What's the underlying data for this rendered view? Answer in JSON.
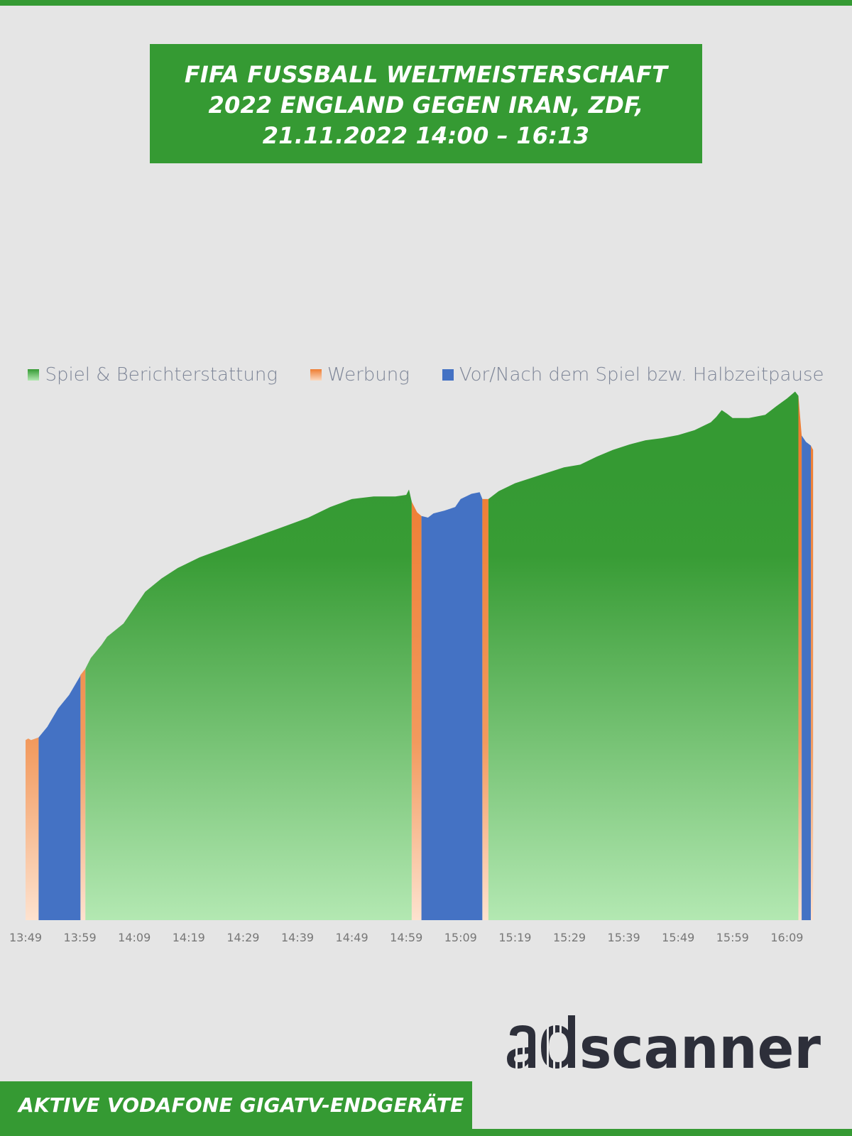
{
  "title": {
    "lines": [
      "FIFA FUSSBALL WELTMEISTERSCHAFT",
      "2022 ENGLAND GEGEN IRAN, ZDF,",
      "21.11.2022 14:00 – 16:13"
    ]
  },
  "footer": {
    "text": "AKTIVE VODAFONE GIGATV-ENDGERÄTE"
  },
  "logo": {
    "text": "adscanner"
  },
  "colors": {
    "accent": "#359a33",
    "game": "#359a33",
    "game_light": "#b3e8b2",
    "ad": "#ee7d32",
    "ad_light": "#fbd9c0",
    "prepost": "#4472c4",
    "background": "#e5e5e5",
    "logo": "#2d2f3a"
  },
  "chart_data": {
    "type": "area",
    "title": "",
    "xlabel": "",
    "ylabel": "",
    "ylim": [
      0,
      100
    ],
    "grid": false,
    "legend_position": "top",
    "legend": [
      {
        "label": "Spiel & Berichterstattung",
        "color": "#359a33"
      },
      {
        "label": "Werbung",
        "color": "#ee7d32"
      },
      {
        "label": "Vor/Nach dem Spiel bzw. Halbzeitpause",
        "color": "#4472c4"
      }
    ],
    "x_ticks": [
      "13:49",
      "13:59",
      "14:09",
      "14:19",
      "14:29",
      "14:39",
      "14:49",
      "14:59",
      "15:09",
      "15:19",
      "15:29",
      "15:39",
      "15:49",
      "15:59",
      "16:09"
    ],
    "x_range_minutes": [
      0,
      147
    ],
    "x_unit": "minutes after 13:49",
    "series": [
      {
        "name": "Werbung",
        "category": "ad",
        "points": [
          [
            0,
            34
          ],
          [
            0.5,
            34.3
          ],
          [
            1,
            34.0
          ],
          [
            2.4,
            34.5
          ]
        ]
      },
      {
        "name": "Vor/Nach dem Spiel bzw. Halbzeitpause",
        "category": "prepost",
        "points": [
          [
            2.4,
            34.5
          ],
          [
            4,
            36.5
          ],
          [
            6,
            40
          ],
          [
            8,
            42.5
          ],
          [
            10,
            46
          ],
          [
            10.1,
            46.3
          ]
        ]
      },
      {
        "name": "Werbung",
        "category": "ad",
        "points": [
          [
            10.1,
            46.3
          ],
          [
            11,
            47.5
          ]
        ]
      },
      {
        "name": "Spiel & Berichterstattung",
        "category": "game",
        "points": [
          [
            11,
            47.5
          ],
          [
            12,
            49.5
          ],
          [
            14,
            52
          ],
          [
            15,
            53.5
          ],
          [
            18,
            56
          ],
          [
            20,
            59
          ],
          [
            22,
            62
          ],
          [
            25,
            64.5
          ],
          [
            28,
            66.5
          ],
          [
            32,
            68.5
          ],
          [
            36,
            70
          ],
          [
            40,
            71.5
          ],
          [
            44,
            73
          ],
          [
            48,
            74.5
          ],
          [
            52,
            76
          ],
          [
            56,
            78
          ],
          [
            60,
            79.5
          ],
          [
            64,
            80
          ],
          [
            66,
            80
          ],
          [
            68,
            80
          ],
          [
            70,
            80.3
          ],
          [
            70.5,
            81.3
          ],
          [
            71,
            79
          ]
        ]
      },
      {
        "name": "Werbung",
        "category": "ad",
        "points": [
          [
            71,
            79
          ],
          [
            72,
            77
          ],
          [
            72.8,
            76.3
          ]
        ]
      },
      {
        "name": "Vor/Nach dem Spiel bzw. Halbzeitpause",
        "category": "prepost",
        "points": [
          [
            72.8,
            76.3
          ],
          [
            74,
            76
          ],
          [
            75,
            76.8
          ],
          [
            77,
            77.3
          ],
          [
            79,
            78
          ],
          [
            80,
            79.5
          ],
          [
            82,
            80.5
          ],
          [
            83.5,
            80.8
          ],
          [
            84,
            79.5
          ]
        ]
      },
      {
        "name": "Werbung",
        "category": "ad",
        "points": [
          [
            84,
            79.5
          ],
          [
            85.1,
            79.5
          ]
        ]
      },
      {
        "name": "Spiel & Berichterstattung",
        "category": "game",
        "points": [
          [
            85.1,
            79.5
          ],
          [
            87,
            81
          ],
          [
            90,
            82.5
          ],
          [
            93,
            83.5
          ],
          [
            96,
            84.5
          ],
          [
            99,
            85.5
          ],
          [
            102,
            86
          ],
          [
            105,
            87.5
          ],
          [
            108,
            88.8
          ],
          [
            111,
            89.8
          ],
          [
            114,
            90.6
          ],
          [
            117,
            91
          ],
          [
            120,
            91.6
          ],
          [
            123,
            92.5
          ],
          [
            126,
            94
          ],
          [
            127,
            95
          ],
          [
            128,
            96.3
          ],
          [
            129,
            95.6
          ],
          [
            130,
            94.8
          ],
          [
            133,
            94.8
          ],
          [
            136,
            95.4
          ],
          [
            138,
            97
          ],
          [
            140,
            98.5
          ],
          [
            141.5,
            99.8
          ],
          [
            142.1,
            99
          ]
        ]
      },
      {
        "name": "Werbung",
        "category": "ad",
        "points": [
          [
            142.1,
            99
          ],
          [
            142.7,
            91.5
          ]
        ]
      },
      {
        "name": "Vor/Nach dem Spiel bzw. Halbzeitpause",
        "category": "prepost",
        "points": [
          [
            142.7,
            91.5
          ],
          [
            143.5,
            90.3
          ],
          [
            144.4,
            89.6
          ]
        ]
      },
      {
        "name": "Werbung",
        "category": "ad",
        "points": [
          [
            144.4,
            89.6
          ],
          [
            144.8,
            88.8
          ]
        ]
      }
    ]
  }
}
